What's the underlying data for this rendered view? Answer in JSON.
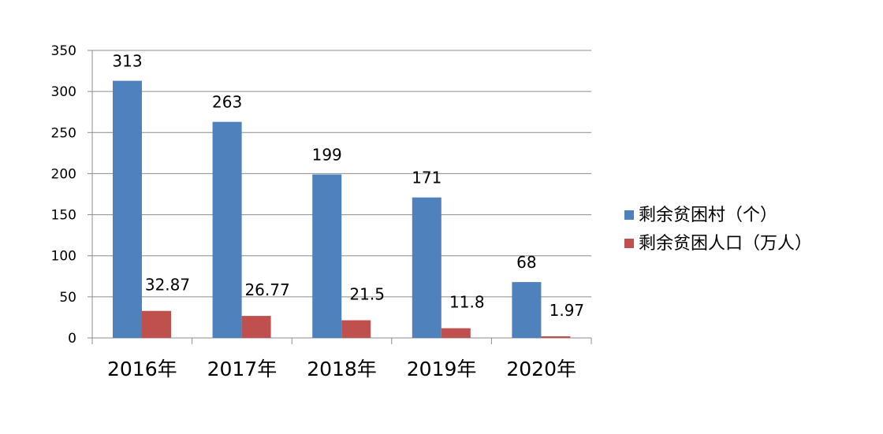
{
  "chart_data": {
    "type": "bar",
    "categories": [
      "2016年",
      "2017年",
      "2018年",
      "2019年",
      "2020年"
    ],
    "series": [
      {
        "name": "剩余贫困村（个）",
        "values": [
          313,
          263,
          199,
          171,
          68
        ],
        "labels": [
          "313",
          "263",
          "199",
          "171",
          "68"
        ],
        "color": "#4F81BD"
      },
      {
        "name": "剩余贫困人口（万人）",
        "values": [
          32.87,
          26.77,
          21.5,
          11.8,
          1.97
        ],
        "labels": [
          "32.87",
          "26.77",
          "21.5",
          "11.8",
          "1.97"
        ],
        "color": "#C0504D"
      }
    ],
    "ylim": [
      0,
      350
    ],
    "yticks": [
      0,
      50,
      100,
      150,
      200,
      250,
      300,
      350
    ],
    "title": "",
    "xlabel": "",
    "ylabel": "",
    "grid": true,
    "legend": "right"
  }
}
